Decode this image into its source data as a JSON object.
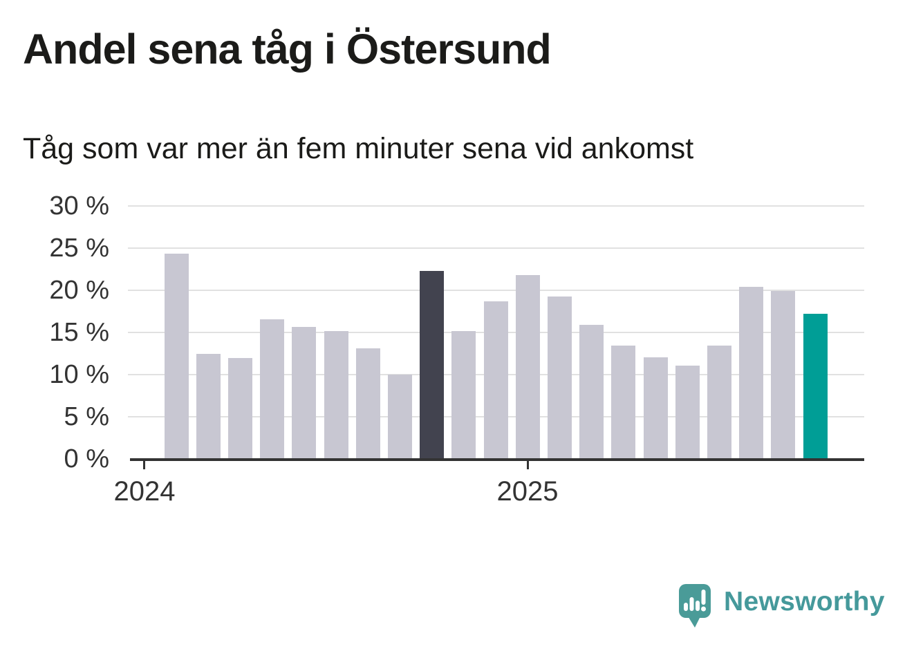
{
  "header": {
    "title": "Andel sena tåg i Östersund",
    "subtitle": "Tåg som var mer än fem minuter sena vid ankomst"
  },
  "chart_data": {
    "type": "bar",
    "title": "Andel sena tåg i Östersund",
    "subtitle": "Tåg som var mer än fem minuter sena vid ankomst",
    "unit": "%",
    "ylim": [
      0,
      30
    ],
    "grid": true,
    "y_ticks": [
      30,
      25,
      20,
      15,
      10,
      5,
      0
    ],
    "y_tick_labels": [
      "30 %",
      "25 %",
      "20 %",
      "15 %",
      "10 %",
      "5 %",
      "0 %"
    ],
    "x_tick_labels": [
      "2024",
      "2025"
    ],
    "x_tick_bar_offsets": [
      -1,
      11
    ],
    "values": [
      24.3,
      12.4,
      11.9,
      16.5,
      15.6,
      15.1,
      13.0,
      9.9,
      22.2,
      15.1,
      18.6,
      21.7,
      19.2,
      15.8,
      13.4,
      12.0,
      11.0,
      13.4,
      20.3,
      19.8,
      17.1
    ],
    "highlighted_dark_bar_index": 8,
    "highlighted_accent_bar_index": 20,
    "colors": {
      "bar_default": "#c8c7d2",
      "bar_dark": "#42434f",
      "bar_accent": "#009e96",
      "axis": "#333333",
      "gridline": "#e1e1e1"
    }
  },
  "branding": {
    "logo_text": "Newsworthy",
    "logo_color": "#45999b"
  }
}
